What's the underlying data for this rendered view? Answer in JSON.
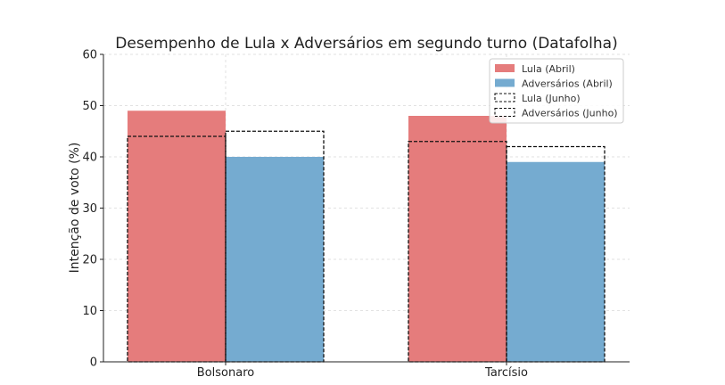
{
  "chart_data": {
    "type": "bar",
    "title": "Desempenho de Lula x Adversários em segundo turno (Datafolha)",
    "xlabel": "",
    "ylabel": "Intenção de voto (%)",
    "ylim": [
      0,
      60
    ],
    "yticks": [
      0,
      10,
      20,
      30,
      40,
      50,
      60
    ],
    "categories": [
      "Bolsonaro",
      "Tarcísio"
    ],
    "series": [
      {
        "name": "Lula (Abril)",
        "values": [
          49,
          48
        ],
        "style": "filled",
        "color": "#e57c7c"
      },
      {
        "name": "Adversários (Abril)",
        "values": [
          40,
          39
        ],
        "style": "filled",
        "color": "#75abd0"
      },
      {
        "name": "Lula (Junho)",
        "values": [
          44,
          43
        ],
        "style": "dashed-outline",
        "color": "#111111"
      },
      {
        "name": "Adversários (Junho)",
        "values": [
          45,
          42
        ],
        "style": "dashed-outline",
        "color": "#111111"
      }
    ],
    "grid": true,
    "legend_position": "top-right"
  }
}
